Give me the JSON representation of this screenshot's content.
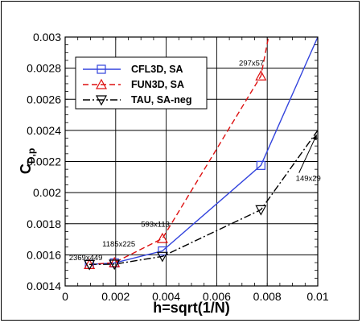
{
  "chart_data": {
    "type": "line",
    "title": "",
    "xlabel": "h=sqrt(1/N)",
    "ylabel_main": "C",
    "ylabel_sub": "D,p",
    "xlim": [
      0,
      0.01
    ],
    "ylim": [
      0.0014,
      0.003
    ],
    "xticks": [
      0,
      0.002,
      0.004,
      0.006,
      0.008,
      0.01
    ],
    "xtick_labels": [
      "0",
      "0.002",
      "0.004",
      "0.006",
      "0.008",
      "0.01"
    ],
    "yticks": [
      0.0014,
      0.0016,
      0.0018,
      0.002,
      0.0022,
      0.0024,
      0.0026,
      0.0028,
      0.003
    ],
    "ytick_labels": [
      "0.0014",
      "0.0016",
      "0.0018",
      "0.002",
      "0.0022",
      "0.0024",
      "0.0026",
      "0.0028",
      "0.003"
    ],
    "grid": true,
    "legend_position": "top-left",
    "series": [
      {
        "name": "CFL3D, SA",
        "color": "#3344dd",
        "dash": "solid",
        "marker": "square",
        "x": [
          0.00096,
          0.00195,
          0.00385,
          0.00775
        ],
        "y": [
          0.001538,
          0.001548,
          0.001625,
          0.002175
        ],
        "extension": {
          "x": [
            0.00775,
            0.01
          ],
          "y": [
            0.002175,
            0.003
          ]
        }
      },
      {
        "name": "FUN3D, SA",
        "color": "#dd1111",
        "dash": "dashed",
        "marker": "triangle-up",
        "x": [
          0.00096,
          0.00195,
          0.00385,
          0.00775
        ],
        "y": [
          0.001538,
          0.00155,
          0.001705,
          0.00275
        ],
        "extension": {
          "x": [
            0.00775,
            0.00805
          ],
          "y": [
            0.00275,
            0.003
          ]
        }
      },
      {
        "name": "TAU, SA-neg",
        "color": "#000000",
        "dash": "dashdot",
        "marker": "triangle-down",
        "x": [
          0.00096,
          0.00195,
          0.00385,
          0.00775
        ],
        "y": [
          0.001538,
          0.00154,
          0.00159,
          0.00189
        ],
        "extension": {
          "x": [
            0.00775,
            0.01
          ],
          "y": [
            0.00189,
            0.0024
          ]
        }
      }
    ],
    "annotations": [
      {
        "text": "2369x449",
        "x": 0.00015,
        "y": 0.001565
      },
      {
        "text": "1185x225",
        "x": 0.00147,
        "y": 0.001655
      },
      {
        "text": "593x113",
        "x": 0.003,
        "y": 0.00178
      },
      {
        "text": "297x57",
        "x": 0.00688,
        "y": 0.002815
      },
      {
        "text": "149x29",
        "x": 0.00913,
        "y": 0.002075,
        "arrow_to": {
          "x": 0.00995,
          "y": 0.00237
        }
      }
    ]
  }
}
